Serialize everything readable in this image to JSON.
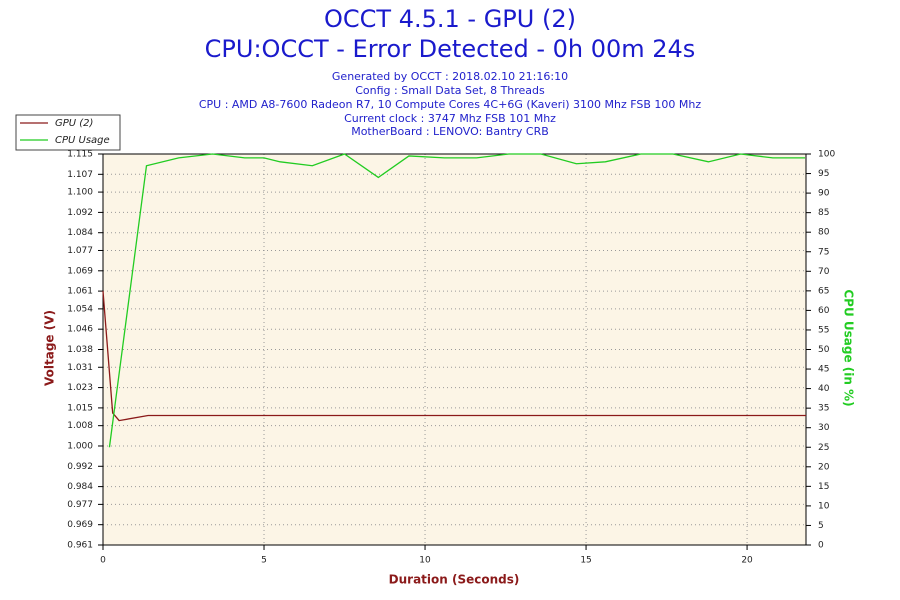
{
  "chart_data": {
    "type": "line",
    "title": "OCCT 4.5.1 - GPU (2)",
    "subtitle": "CPU:OCCT - Error Detected - 0h 00m 24s",
    "info": [
      "Generated by OCCT : 2018.02.10 21:16:10",
      "Config : Small Data Set, 8 Threads",
      "CPU : AMD A8-7600 Radeon R7, 10 Compute Cores 4C+6G (Kaveri) 3100 Mhz FSB 100 Mhz",
      "Current clock : 3747 Mhz FSB 101 Mhz",
      "MotherBoard : LENOVO: Bantry CRB"
    ],
    "x_label": "Duration (Seconds)",
    "y_label": "Voltage (V)",
    "y2_label": "CPU Usage (in %)",
    "xlim": [
      0,
      21.83
    ],
    "xticks": [
      0,
      5,
      10,
      15,
      20
    ],
    "ylim": [
      0.961,
      1.115
    ],
    "yticks": [
      0.961,
      0.969,
      0.977,
      0.984,
      0.992,
      {
        "value": 1.0,
        "label": "1.000"
      },
      1.008,
      1.015,
      1.023,
      1.031,
      1.038,
      1.046,
      1.054,
      1.061,
      1.069,
      1.077,
      1.084,
      1.092,
      {
        "value": 1.1,
        "label": "1.100"
      },
      1.107,
      1.115
    ],
    "y2lim": [
      0,
      100
    ],
    "y2ticks": [
      0,
      5,
      10,
      15,
      20,
      25,
      30,
      35,
      40,
      45,
      50,
      55,
      60,
      65,
      70,
      75,
      80,
      85,
      90,
      95,
      100
    ],
    "grid": true,
    "legend": "top-left",
    "series": [
      {
        "name": "GPU (2)",
        "color": "#8b1a1a",
        "x": [
          0,
          0.3,
          0.5,
          1.4,
          21.83
        ],
        "values": [
          1.061,
          1.013,
          1.01,
          1.012,
          1.012
        ]
      },
      {
        "name": "CPU Usage",
        "color": "#22cc22",
        "axis": "y2",
        "x": [
          0.2,
          1.35,
          2.35,
          3.4,
          4.4,
          5,
          5.5,
          6.5,
          7.5,
          8.55,
          9.5,
          10.6,
          11.6,
          12.6,
          13.6,
          14.7,
          15.6,
          16.7,
          17.7,
          18.8,
          19.8,
          20.8,
          21.8
        ],
        "values": [
          25,
          97,
          99,
          100,
          99,
          99,
          98,
          97,
          100,
          94,
          99.5,
          99,
          99,
          100,
          100,
          97.5,
          98,
          100,
          100,
          98,
          100,
          99,
          99
        ]
      }
    ]
  }
}
